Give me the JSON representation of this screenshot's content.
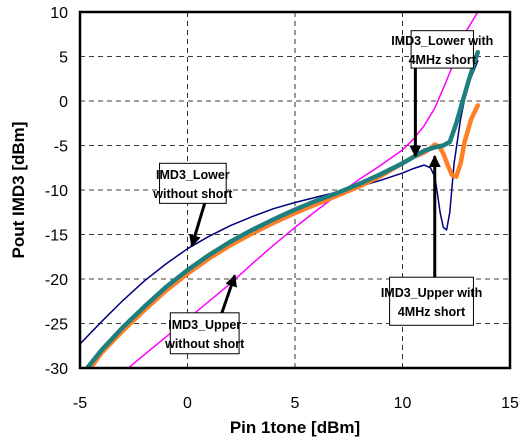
{
  "chart_data": {
    "type": "line",
    "xlabel": "Pin 1tone [dBm]",
    "ylabel": "Pout IMD3 [dBm]",
    "xlim": [
      -5,
      15
    ],
    "ylim": [
      -30,
      10
    ],
    "xticks": [
      -5,
      0,
      5,
      10,
      15
    ],
    "yticks": [
      -30,
      -25,
      -20,
      -15,
      -10,
      -5,
      0,
      5,
      10
    ],
    "grid": "dashed",
    "legend": "none",
    "series": [
      {
        "color": "#000080",
        "points": [
          [
            -5,
            -27.3
          ],
          [
            -4,
            -24.8
          ],
          [
            -3,
            -22.4
          ],
          [
            -2,
            -20.2
          ],
          [
            -1,
            -18.3
          ],
          [
            0,
            -16.6
          ],
          [
            1,
            -15.2
          ],
          [
            2,
            -14.0
          ],
          [
            3,
            -13.0
          ],
          [
            4,
            -12.1
          ],
          [
            5,
            -11.4
          ],
          [
            6,
            -10.8
          ],
          [
            7,
            -10.2
          ],
          [
            8,
            -9.6
          ],
          [
            9,
            -8.9
          ],
          [
            10,
            -8.1
          ],
          [
            10.5,
            -7.6
          ],
          [
            11,
            -7.2
          ],
          [
            11.3,
            -7.5
          ],
          [
            11.5,
            -8.5
          ],
          [
            11.6,
            -10
          ],
          [
            11.75,
            -12.5
          ],
          [
            11.9,
            -14.2
          ],
          [
            12.05,
            -14.5
          ],
          [
            12.2,
            -12.5
          ],
          [
            12.4,
            -7
          ],
          [
            12.7,
            -2
          ],
          [
            13,
            1.5
          ],
          [
            13.5,
            4.5
          ]
        ]
      },
      {
        "color": "#ff00ff",
        "points": [
          [
            -3,
            -30.5
          ],
          [
            -2,
            -28.5
          ],
          [
            -1,
            -26.5
          ],
          [
            0,
            -24.5
          ],
          [
            1,
            -22.5
          ],
          [
            2,
            -20.5
          ],
          [
            3,
            -18.3
          ],
          [
            4,
            -16.2
          ],
          [
            5,
            -14.2
          ],
          [
            6,
            -12.3
          ],
          [
            7,
            -10.5
          ],
          [
            8,
            -8.8
          ],
          [
            9,
            -7.2
          ],
          [
            10,
            -5.5
          ],
          [
            10.5,
            -4.3
          ],
          [
            11,
            -2.8
          ],
          [
            11.5,
            -0.8
          ],
          [
            12,
            2
          ],
          [
            12.5,
            5
          ],
          [
            13,
            8
          ],
          [
            13.5,
            10
          ]
        ]
      },
      {
        "color": "#ff7f27",
        "width": 4.5,
        "points": [
          [
            -4.8,
            -31
          ],
          [
            -4,
            -28.3
          ],
          [
            -3,
            -25.8
          ],
          [
            -2,
            -23.5
          ],
          [
            -1,
            -21.3
          ],
          [
            0,
            -19.4
          ],
          [
            1,
            -17.7
          ],
          [
            2,
            -16.2
          ],
          [
            3,
            -14.9
          ],
          [
            4,
            -13.7
          ],
          [
            5,
            -12.6
          ],
          [
            6,
            -11.6
          ],
          [
            7,
            -10.6
          ],
          [
            8,
            -9.6
          ],
          [
            9,
            -8.4
          ],
          [
            10,
            -7
          ],
          [
            10.5,
            -6.3
          ],
          [
            11,
            -5.8
          ],
          [
            11.3,
            -5.3
          ],
          [
            11.5,
            -4.9
          ],
          [
            11.7,
            -5.1
          ],
          [
            11.9,
            -5.9
          ],
          [
            12.1,
            -7.2
          ],
          [
            12.3,
            -8.3
          ],
          [
            12.5,
            -8.5
          ],
          [
            12.7,
            -7
          ],
          [
            12.9,
            -4.5
          ],
          [
            13.2,
            -2
          ],
          [
            13.5,
            -0.5
          ]
        ]
      },
      {
        "color": "#1f7f7f",
        "width": 4.5,
        "points": [
          [
            -5,
            -31
          ],
          [
            -4,
            -28
          ],
          [
            -3,
            -25.4
          ],
          [
            -2,
            -23.1
          ],
          [
            -1,
            -20.9
          ],
          [
            0,
            -19
          ],
          [
            1,
            -17.3
          ],
          [
            2,
            -15.8
          ],
          [
            3,
            -14.5
          ],
          [
            4,
            -13.3
          ],
          [
            5,
            -12.2
          ],
          [
            6,
            -11.2
          ],
          [
            7,
            -10.3
          ],
          [
            8,
            -9.3
          ],
          [
            9,
            -8.2
          ],
          [
            10,
            -7
          ],
          [
            10.5,
            -6.3
          ],
          [
            11,
            -5.6
          ],
          [
            11.5,
            -5.2
          ],
          [
            11.9,
            -5
          ],
          [
            12.2,
            -4.6
          ],
          [
            12.5,
            -2.5
          ],
          [
            12.8,
            0
          ],
          [
            13.1,
            2.5
          ],
          [
            13.5,
            5.5
          ]
        ]
      }
    ],
    "annotations": [
      {
        "lines": [
          "IMD3_Lower with",
          "4MHz short"
        ],
        "box": [
          10.4,
          3.7,
          13.3,
          7.9
        ],
        "arrow": [
          [
            10.6,
            3.7
          ],
          [
            10.6,
            -6.2
          ]
        ]
      },
      {
        "lines": [
          "IMD3_Lower",
          "without short"
        ],
        "box": [
          -1.3,
          -11.5,
          1.8,
          -7
        ],
        "arrow": [
          [
            0.8,
            -11.5
          ],
          [
            0.2,
            -16.3
          ]
        ]
      },
      {
        "lines": [
          "IMD3_Upper",
          "without short"
        ],
        "box": [
          -0.8,
          -28.4,
          2.4,
          -23.8
        ],
        "arrow": [
          [
            1.6,
            -23.8
          ],
          [
            2.2,
            -19.6
          ]
        ]
      },
      {
        "lines": [
          "IMD3_Upper with",
          "4MHz short"
        ],
        "box": [
          9.4,
          -25.2,
          13.3,
          -19.8
        ],
        "arrow": [
          [
            11.5,
            -19.8
          ],
          [
            11.5,
            -6.2
          ]
        ]
      }
    ]
  }
}
